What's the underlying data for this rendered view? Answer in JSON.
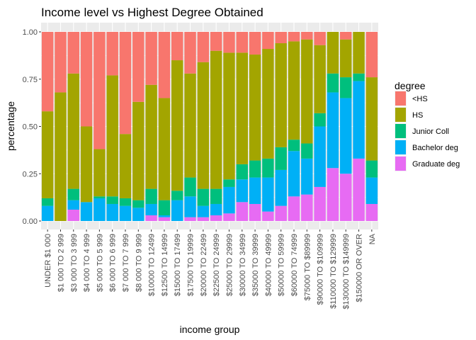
{
  "chart_data": {
    "type": "bar",
    "stacked": true,
    "title": "Income level vs Highest Degree Obtained",
    "xlabel": "income group",
    "ylabel": "percentage",
    "ylim": [
      0,
      1
    ],
    "yticks": [
      0.0,
      0.25,
      0.5,
      0.75,
      1.0
    ],
    "ytick_labels": [
      "0.00",
      "0.25",
      "0.50",
      "0.75",
      "1.00"
    ],
    "grid": true,
    "legend_position": "right",
    "legend_title": "degree",
    "categories": [
      "UNDER $1 000",
      "$1 000 TO 2 999",
      "$3 000 TO 3 999",
      "$4 000 TO 4 999",
      "$5 000 TO 5 999",
      "$6 000 TO 6 999",
      "$7 000 TO 7 999",
      "$8 000 TO 9 999",
      "$10000 TO 12499",
      "$12500 TO 14999",
      "$15000 TO 17499",
      "$17500 TO 19999",
      "$20000 TO 22499",
      "$22500 TO 24999",
      "$25000 TO 29999",
      "$30000 TO 34999",
      "$35000 TO 39999",
      "$40000 TO 49999",
      "$50000 TO 59999",
      "$60000 TO 74999",
      "$75000 TO $89999",
      "$90000 TO $109999",
      "$110000 TO $129999",
      "$130000 TO $149999",
      "$150000 OR OVER",
      "NA"
    ],
    "series": [
      {
        "name": "Graduate deg",
        "color": "#E76BF3",
        "values": [
          0.0,
          0.0,
          0.06,
          0.0,
          0.0,
          0.0,
          0.0,
          0.0,
          0.03,
          0.02,
          0.0,
          0.02,
          0.02,
          0.03,
          0.04,
          0.1,
          0.09,
          0.05,
          0.08,
          0.13,
          0.14,
          0.18,
          0.28,
          0.25,
          0.33,
          0.09
        ]
      },
      {
        "name": "Bachelor deg",
        "color": "#00B0F6",
        "values": [
          0.08,
          0.0,
          0.05,
          0.1,
          0.12,
          0.09,
          0.08,
          0.07,
          0.06,
          0.01,
          0.11,
          0.11,
          0.06,
          0.06,
          0.14,
          0.12,
          0.14,
          0.18,
          0.19,
          0.24,
          0.19,
          0.32,
          0.4,
          0.4,
          0.41,
          0.14
        ]
      },
      {
        "name": "Junior Coll",
        "color": "#00BF7D",
        "values": [
          0.04,
          0.0,
          0.06,
          0.0,
          0.01,
          0.04,
          0.04,
          0.04,
          0.08,
          0.08,
          0.05,
          0.1,
          0.09,
          0.08,
          0.04,
          0.08,
          0.09,
          0.1,
          0.12,
          0.06,
          0.08,
          0.07,
          0.1,
          0.11,
          0.04,
          0.09
        ]
      },
      {
        "name": "HS",
        "color": "#A3A500",
        "values": [
          0.46,
          0.68,
          0.61,
          0.4,
          0.25,
          0.64,
          0.34,
          0.52,
          0.55,
          0.54,
          0.69,
          0.55,
          0.67,
          0.73,
          0.67,
          0.59,
          0.56,
          0.58,
          0.55,
          0.52,
          0.55,
          0.36,
          0.22,
          0.2,
          0.22,
          0.44
        ]
      },
      {
        "name": "<HS",
        "color": "#F8766D",
        "values": [
          0.42,
          0.32,
          0.22,
          0.5,
          0.62,
          0.23,
          0.54,
          0.37,
          0.28,
          0.35,
          0.15,
          0.22,
          0.16,
          0.1,
          0.11,
          0.11,
          0.12,
          0.09,
          0.06,
          0.05,
          0.04,
          0.07,
          0.0,
          0.04,
          0.0,
          0.24
        ]
      }
    ],
    "legend_order": [
      "<HS",
      "HS",
      "Junior Coll",
      "Bachelor deg",
      "Graduate deg"
    ],
    "panel_background": "#EBEBEB",
    "grid_major_color": "#FFFFFF"
  }
}
